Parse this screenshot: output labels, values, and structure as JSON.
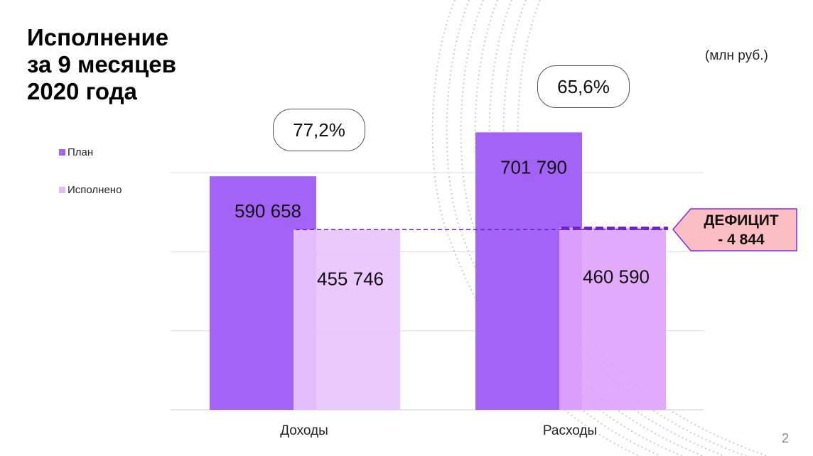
{
  "title_lines": [
    "Исполнение",
    "за 9 месяцев",
    "2020 года"
  ],
  "unit": "(млн руб.)",
  "legend": {
    "plan": "План",
    "done": "Исполнено"
  },
  "percent_badges": {
    "dohody": "77,2%",
    "rashody": "65,6%"
  },
  "deficit": {
    "line1": "ДЕФИЦИТ",
    "line2": "- 4 844"
  },
  "page_number": "2",
  "colors": {
    "plan": "#a363f7",
    "done_dohody": "#e8c4fd",
    "done_rashody": "#dfa3fb",
    "deficit_bg": "#fbbec2",
    "deficit_border": "#7e2fe0",
    "dash_line": "#6a22c8",
    "grid": "#dddddd"
  },
  "chart_data": {
    "type": "bar",
    "categories": [
      "Доходы",
      "Расходы"
    ],
    "series": [
      {
        "name": "План",
        "values": [
          590658,
          701790
        ],
        "labels": [
          "590 658",
          "701 790"
        ]
      },
      {
        "name": "Исполнено",
        "values": [
          455746,
          460590
        ],
        "labels": [
          "455 746",
          "460 590"
        ]
      }
    ],
    "ylim": [
      0,
      800000
    ],
    "grid": true,
    "legend_position": "left"
  }
}
